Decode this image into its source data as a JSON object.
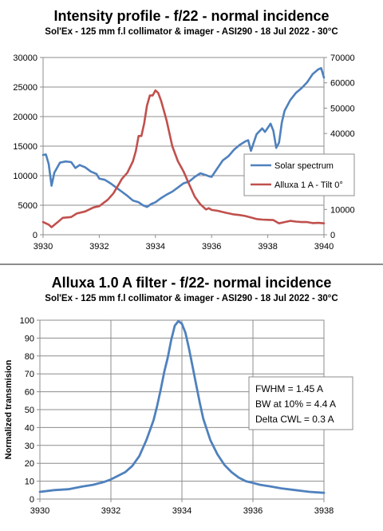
{
  "chart_data": [
    {
      "type": "line",
      "title": "Intensity profile - f/22 - normal incidence",
      "subtitle": "Sol'Ex - 125 mm f.l collimator & imager - ASI290 - 18 Jul 2022 - 30°C",
      "xlabel": "",
      "ylabel": "",
      "xlim": [
        3930,
        3940
      ],
      "ylim": [
        0,
        30000
      ],
      "y2lim": [
        0,
        70000
      ],
      "x_ticks": [
        "3930",
        "3932",
        "3934",
        "3936",
        "3938",
        "3940"
      ],
      "y_ticks": [
        "0",
        "5000",
        "10000",
        "15000",
        "20000",
        "25000",
        "30000"
      ],
      "y2_ticks": [
        "0",
        "10000",
        "20000",
        "30000",
        "40000",
        "50000",
        "60000",
        "70000"
      ],
      "grid": true,
      "legend_position": "center-right",
      "series": [
        {
          "name": "Solar spectrum",
          "axis": "left",
          "color": "#4f81bd",
          "x": [
            3930.0,
            3930.1,
            3930.2,
            3930.3,
            3930.4,
            3930.6,
            3930.8,
            3931.0,
            3931.15,
            3931.3,
            3931.5,
            3931.7,
            3931.9,
            3932.0,
            3932.2,
            3932.4,
            3932.6,
            3932.8,
            3933.0,
            3933.2,
            3933.4,
            3933.55,
            3933.7,
            3933.85,
            3934.0,
            3934.2,
            3934.4,
            3934.6,
            3934.8,
            3935.0,
            3935.2,
            3935.4,
            3935.6,
            3935.8,
            3935.9,
            3936.0,
            3936.2,
            3936.4,
            3936.6,
            3936.8,
            3937.0,
            3937.2,
            3937.3,
            3937.4,
            3937.6,
            3937.8,
            3937.9,
            3938.0,
            3938.1,
            3938.2,
            3938.3,
            3938.4,
            3938.5,
            3938.6,
            3938.8,
            3939.0,
            3939.2,
            3939.4,
            3939.6,
            3939.8,
            3939.9,
            3940.0
          ],
          "values": [
            13500,
            13600,
            12000,
            8300,
            10500,
            12200,
            12400,
            12300,
            11300,
            11800,
            11400,
            10700,
            10300,
            9500,
            9300,
            8700,
            8000,
            7300,
            6600,
            5800,
            5500,
            5000,
            4700,
            5200,
            5500,
            6200,
            6800,
            7300,
            8000,
            8700,
            9000,
            9800,
            10400,
            10100,
            9900,
            9800,
            11200,
            12600,
            13300,
            14400,
            15200,
            15800,
            16000,
            14200,
            17000,
            18000,
            17400,
            18100,
            18800,
            17600,
            14700,
            15600,
            19000,
            21000,
            22800,
            24000,
            24800,
            25800,
            27200,
            28000,
            28200,
            26600
          ]
        },
        {
          "name": "Alluxa 1 A - Tilt 0°",
          "axis": "right",
          "color": "#c0504d",
          "x": [
            3930.0,
            3930.2,
            3930.3,
            3930.5,
            3930.7,
            3931.0,
            3931.2,
            3931.5,
            3931.8,
            3932.0,
            3932.3,
            3932.5,
            3932.7,
            3932.8,
            3933.0,
            3933.2,
            3933.3,
            3933.4,
            3933.5,
            3933.6,
            3933.7,
            3933.8,
            3933.9,
            3934.0,
            3934.1,
            3934.2,
            3934.3,
            3934.4,
            3934.5,
            3934.6,
            3934.8,
            3935.0,
            3935.2,
            3935.4,
            3935.6,
            3935.8,
            3935.9,
            3936.0,
            3936.2,
            3936.5,
            3936.8,
            3937.0,
            3937.2,
            3937.4,
            3937.6,
            3937.8,
            3938.0,
            3938.2,
            3938.4,
            3938.6,
            3938.8,
            3939.0,
            3939.2,
            3939.4,
            3939.6,
            3939.8,
            3940.0
          ],
          "values": [
            5000,
            4000,
            3000,
            4800,
            6700,
            7000,
            8400,
            9200,
            10800,
            11300,
            13800,
            16300,
            20000,
            22000,
            24500,
            29000,
            33000,
            39000,
            39000,
            44000,
            51000,
            55000,
            55000,
            57000,
            56000,
            53000,
            49000,
            45000,
            40000,
            35000,
            29000,
            25000,
            20000,
            15000,
            12000,
            10000,
            10500,
            9800,
            9500,
            8700,
            8000,
            7800,
            7400,
            6800,
            6200,
            6000,
            5900,
            5800,
            4500,
            5000,
            5500,
            5200,
            5000,
            5000,
            4600,
            4700,
            4500
          ]
        }
      ]
    },
    {
      "type": "line",
      "title": "Alluxa 1.0 A filter - f/22- normal incidence",
      "subtitle": "Sol'Ex - 125 mm f.l collimator & imager - ASI290 - 18 Jul 2022 - 30°C",
      "xlabel": "",
      "ylabel": "Normalized transmision",
      "xlim": [
        3930,
        3938
      ],
      "ylim": [
        0,
        100
      ],
      "x_ticks": [
        "3930",
        "3932",
        "3934",
        "3936",
        "3938"
      ],
      "y_ticks": [
        "0",
        "10",
        "20",
        "30",
        "40",
        "50",
        "60",
        "70",
        "80",
        "90",
        "100"
      ],
      "grid": true,
      "annotation": [
        "FWHM = 1.45  A",
        "BW at 10% = 4.4  A",
        "Delta CWL = 0.3 A"
      ],
      "series": [
        {
          "color": "#4f81bd",
          "x": [
            3930.0,
            3930.4,
            3930.8,
            3931.2,
            3931.5,
            3931.8,
            3932.0,
            3932.2,
            3932.4,
            3932.6,
            3932.8,
            3933.0,
            3933.2,
            3933.3,
            3933.4,
            3933.5,
            3933.6,
            3933.7,
            3933.8,
            3933.9,
            3934.0,
            3934.1,
            3934.2,
            3934.3,
            3934.4,
            3934.5,
            3934.6,
            3934.7,
            3934.8,
            3935.0,
            3935.2,
            3935.4,
            3935.6,
            3935.8,
            3936.0,
            3936.2,
            3936.5,
            3936.8,
            3937.2,
            3937.6,
            3938.0
          ],
          "values": [
            4,
            5,
            5.5,
            7,
            8,
            9.5,
            11,
            13,
            15,
            18.5,
            24,
            33,
            44,
            52,
            61,
            71,
            79,
            89,
            97,
            99.5,
            98,
            93,
            84,
            74,
            64,
            54,
            45,
            39,
            33,
            25,
            19,
            15,
            12,
            10,
            9,
            8,
            7,
            6,
            5,
            4,
            3.5
          ]
        }
      ]
    }
  ]
}
